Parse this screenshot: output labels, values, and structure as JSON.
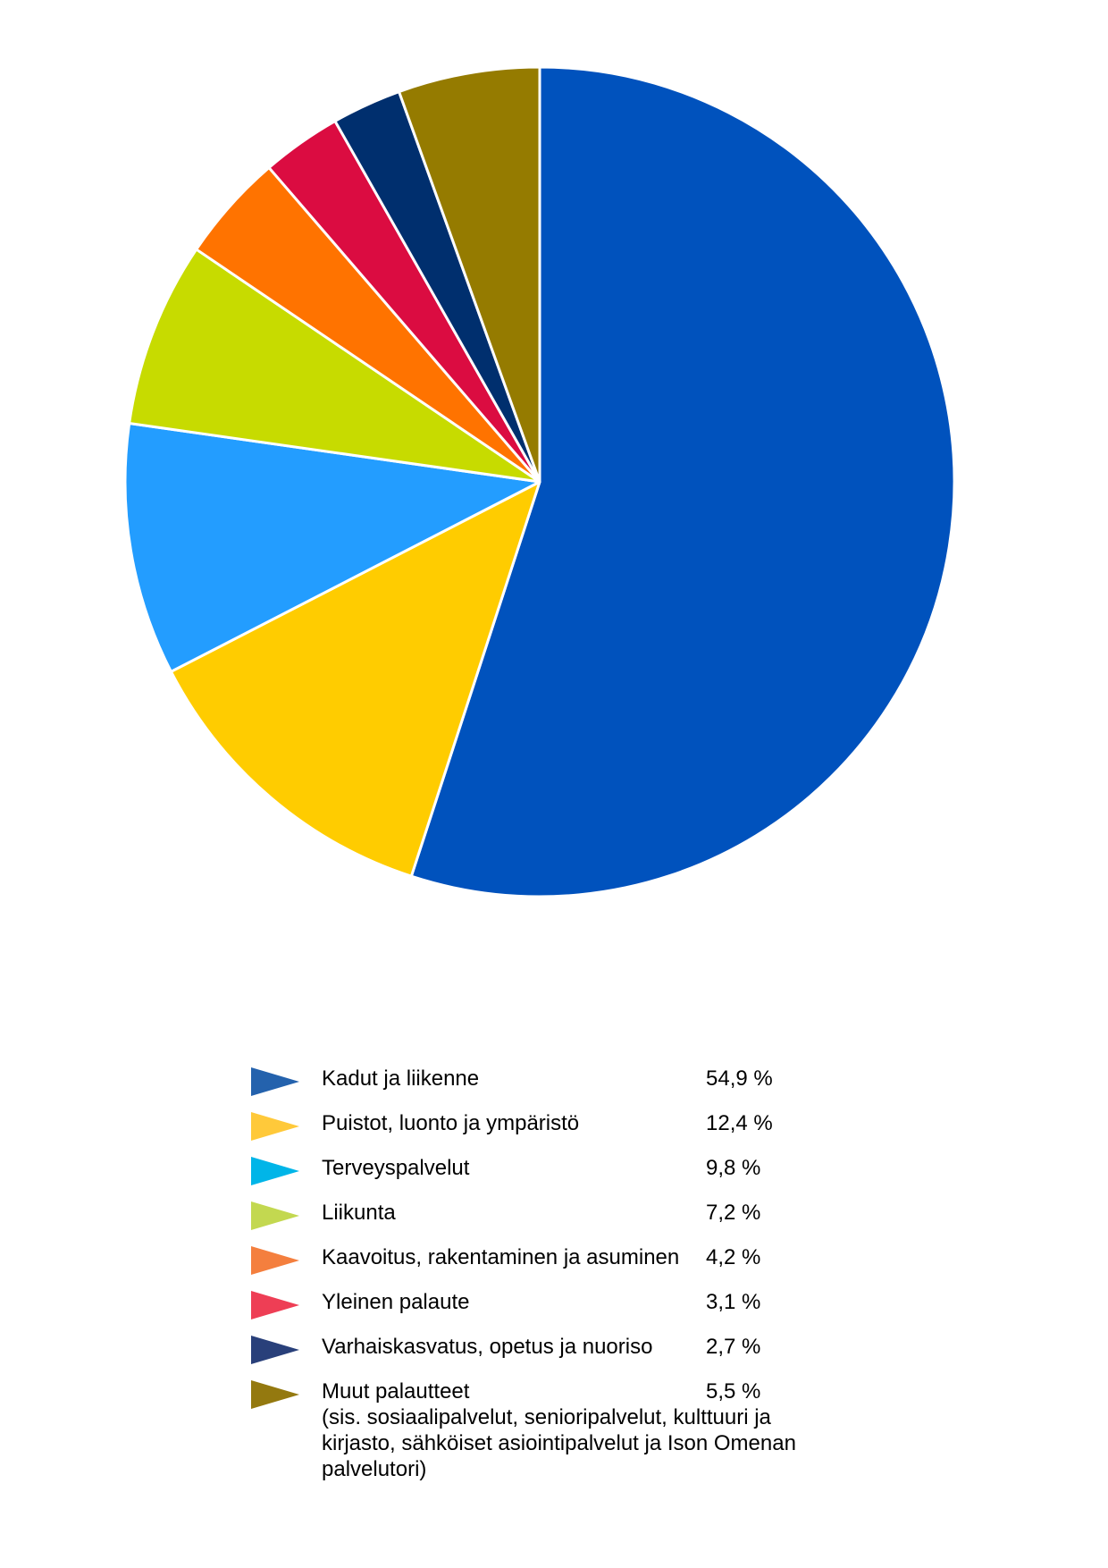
{
  "chart_data": {
    "type": "pie",
    "title": "",
    "slices": [
      {
        "label": "Kadut ja liikenne",
        "value": 54.9,
        "value_label": "54,9 %",
        "color": "#0052BD",
        "marker_color": "#2462AD"
      },
      {
        "label": "Puistot, luonto ja ympäristö",
        "value": 12.4,
        "value_label": "12,4 %",
        "color": "#FFCC00",
        "marker_color": "#FFC93A"
      },
      {
        "label": "Terveyspalvelut",
        "value": 9.8,
        "value_label": "9,8 %",
        "color": "#239DFF",
        "marker_color": "#00B5E8"
      },
      {
        "label": "Liikunta",
        "value": 7.2,
        "value_label": "7,2 %",
        "color": "#C7DB00",
        "marker_color": "#C3D850"
      },
      {
        "label": "Kaavoitus, rakentaminen ja asuminen",
        "value": 4.2,
        "value_label": "4,2 %",
        "color": "#FF7300",
        "marker_color": "#F47F3E"
      },
      {
        "label": "Yleinen palaute",
        "value": 3.1,
        "value_label": "3,1 %",
        "color": "#DB0C41",
        "marker_color": "#EE3E55"
      },
      {
        "label": "Varhaiskasvatus, opetus ja nuoriso",
        "value": 2.7,
        "value_label": "2,7 %",
        "color": "#002F6E",
        "marker_color": "#29407A"
      },
      {
        "label": "Muut palautteet",
        "value": 5.5,
        "value_label": "5,5 %",
        "color": "#957B00",
        "marker_color": "#94790F",
        "note": "(sis. sosiaalipalvelut, senioripalvelut, kulttuuri ja kirjasto, sähköiset asiointipalvelut ja Ison Omenan palvelutori)"
      }
    ],
    "start": "12 o'clock",
    "direction": "clockwise",
    "legend_position": "bottom"
  }
}
